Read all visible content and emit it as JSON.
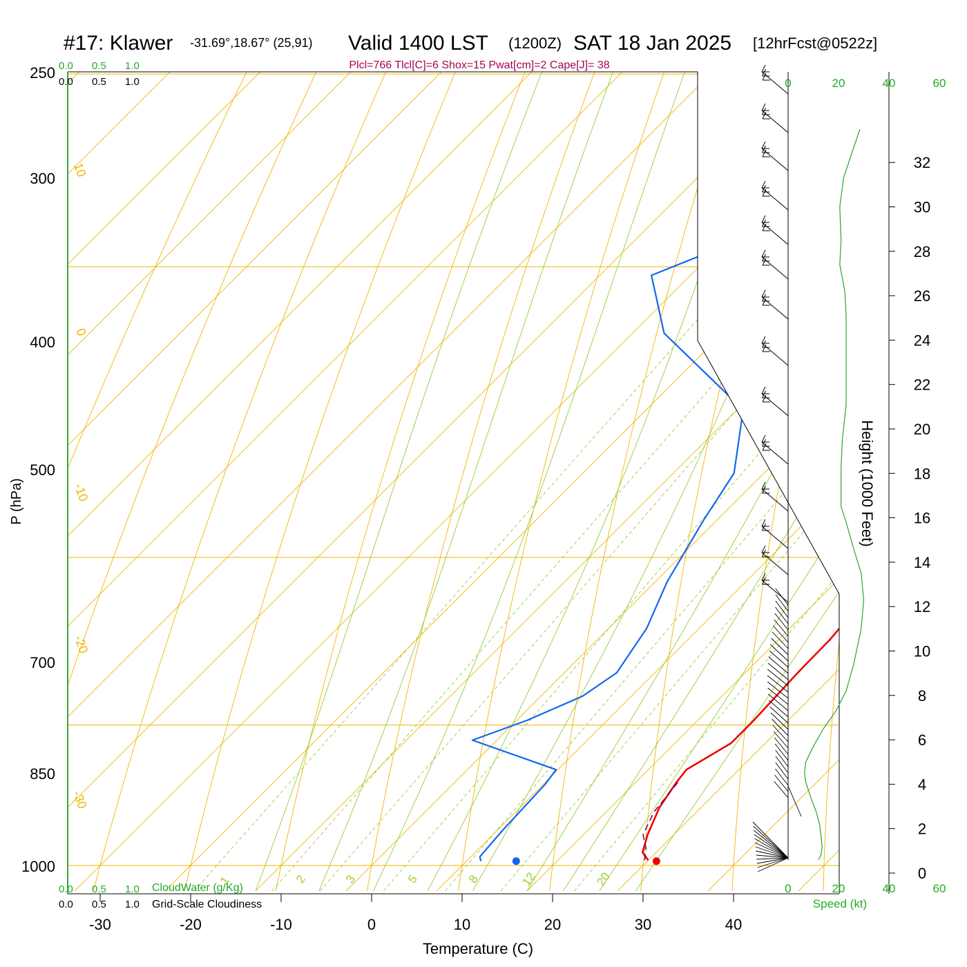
{
  "header": {
    "station": "#17: Klawer",
    "coords": "-31.69°,18.67° (25,91)",
    "valid": "Valid 1400 LST",
    "zulu": "(1200Z)",
    "date": "SAT 18 Jan 2025",
    "fcst": "[12hrFcst@0522z]",
    "indices": "Plcl=766 Tlcl[C]=6 Shox=15 Pwat[cm]=2 Cape[J]= 38"
  },
  "colors": {
    "isotherm": "#f0b400",
    "mixing_ratio": "#99cc33",
    "temperature": "#ee0000",
    "dewpoint": "#1166ee",
    "parcel": "#660066",
    "wind_speed": "#2aa52a",
    "green_text": "#22aa22",
    "indices_text": "#aa0055"
  },
  "chart_data": {
    "type": "line",
    "title": "#17: Klawer",
    "xlabel": "Temperature (C)",
    "ylabel": "P (hPa)",
    "right_axis_label": "Height (1000 Feet)",
    "x_ticks": [
      "-30",
      "-20",
      "-10",
      "0",
      "10",
      "20",
      "30",
      "40"
    ],
    "p_ticks": [
      "250",
      "300",
      "400",
      "500",
      "700",
      "850",
      "1000"
    ],
    "height_ticks": [
      "0",
      "2",
      "4",
      "6",
      "8",
      "10",
      "12",
      "14",
      "16",
      "18",
      "20",
      "22",
      "24",
      "26",
      "28",
      "30",
      "32"
    ],
    "temp_axis_range": [
      -34,
      36
    ],
    "pressure_range": [
      1030,
      250
    ],
    "series": [
      {
        "name": "Temperature",
        "points": [
          [
            30,
            994
          ],
          [
            28.5,
            985
          ],
          [
            27.1,
            965
          ],
          [
            25.4,
            935
          ],
          [
            24.5,
            908
          ],
          [
            24.2,
            895
          ],
          [
            26.2,
            868
          ],
          [
            26.2,
            845
          ],
          [
            25.8,
            800
          ],
          [
            25.7,
            770
          ],
          [
            25.1,
            740
          ],
          [
            23.8,
            705
          ],
          [
            22,
            675
          ],
          [
            20.2,
            640
          ],
          [
            19.5,
            618
          ],
          [
            19.5,
            585
          ],
          [
            19,
            555
          ],
          [
            18.4,
            530
          ],
          [
            18.3,
            503
          ],
          [
            17.6,
            470
          ],
          [
            17,
            445
          ],
          [
            16.1,
            420
          ],
          [
            15.2,
            395
          ],
          [
            14.4,
            373
          ],
          [
            13.8,
            355
          ],
          [
            12.4,
            330
          ],
          [
            11.3,
            310
          ],
          [
            8.9,
            288
          ],
          [
            6.6,
            268
          ]
        ]
      },
      {
        "name": "Dewpoint",
        "points": [
          [
            11.6,
            995
          ],
          [
            11,
            990
          ],
          [
            10.6,
            960
          ],
          [
            10.2,
            910
          ],
          [
            9.8,
            895
          ],
          [
            -2.7,
            865
          ],
          [
            1.2,
            845
          ],
          [
            4.6,
            822
          ],
          [
            5.8,
            800
          ],
          [
            4.2,
            760
          ],
          [
            1.3,
            720
          ],
          [
            -1.5,
            670
          ],
          [
            -3.3,
            635
          ],
          [
            -9.3,
            590
          ],
          [
            -26.5,
            540
          ],
          [
            -34.3,
            505
          ],
          [
            -29.1,
            487
          ],
          [
            -27.1,
            462
          ],
          [
            -22.7,
            423
          ],
          [
            -25.7,
            390
          ],
          [
            -30.8,
            360
          ],
          [
            -33.7,
            348
          ],
          [
            -34.6,
            325
          ],
          [
            -35,
            305
          ],
          [
            -37.6,
            283
          ],
          [
            -40.2,
            265
          ]
        ]
      },
      {
        "name": "Parcel",
        "points": [
          [
            29.6,
            994
          ],
          [
            28.4,
            980
          ],
          [
            26.6,
            965
          ],
          [
            25.3,
            940
          ],
          [
            24.6,
            905
          ]
        ]
      }
    ],
    "surface_points": {
      "temperature": 31,
      "dewpoint": 15.5,
      "pressure": 995
    },
    "isotherm_labels": [
      "10",
      "0",
      "-10",
      "-20",
      "-30",
      "0",
      "10",
      "20",
      "30"
    ],
    "mixing_ratio_labels": [
      "1",
      "2",
      "3",
      "5",
      "8",
      "12",
      "20"
    ],
    "wind_speed_profile": {
      "axis_label": "Speed (kt)",
      "ticks": [
        "0",
        "20",
        "40",
        "60"
      ],
      "points": [
        [
          12,
          0.6
        ],
        [
          13,
          0.8
        ],
        [
          13.5,
          1.2
        ],
        [
          12.5,
          2.2
        ],
        [
          11,
          2.8
        ],
        [
          9,
          3.4
        ],
        [
          7,
          4.1
        ],
        [
          6.5,
          4.5
        ],
        [
          7,
          5
        ],
        [
          10,
          5.7
        ],
        [
          14,
          6.5
        ],
        [
          19,
          7.3
        ],
        [
          23,
          8.2
        ],
        [
          26,
          9.4
        ],
        [
          29,
          11
        ],
        [
          30,
          12.3
        ],
        [
          29,
          13.5
        ],
        [
          26,
          14.6
        ],
        [
          23,
          15.8
        ],
        [
          21,
          16.5
        ],
        [
          21,
          18.3
        ],
        [
          21.5,
          19.5
        ],
        [
          23,
          21.1
        ],
        [
          23,
          22
        ],
        [
          23,
          22.9
        ],
        [
          23,
          24.1
        ],
        [
          23,
          25.1
        ],
        [
          22.5,
          26.2
        ],
        [
          20.5,
          27.4
        ],
        [
          21,
          28.5
        ],
        [
          20.5,
          30
        ],
        [
          22,
          31.3
        ],
        [
          25.5,
          32.5
        ],
        [
          28.5,
          33.5
        ]
      ]
    },
    "cloud_axes": {
      "green_ticks": [
        "0.0",
        "0.5",
        "1.0"
      ],
      "black_ticks": [
        "0.0",
        "0.5",
        "1.0"
      ],
      "green_label": "CloudWater (g/Kg)",
      "black_label": "Grid-Scale Cloudiness"
    }
  }
}
